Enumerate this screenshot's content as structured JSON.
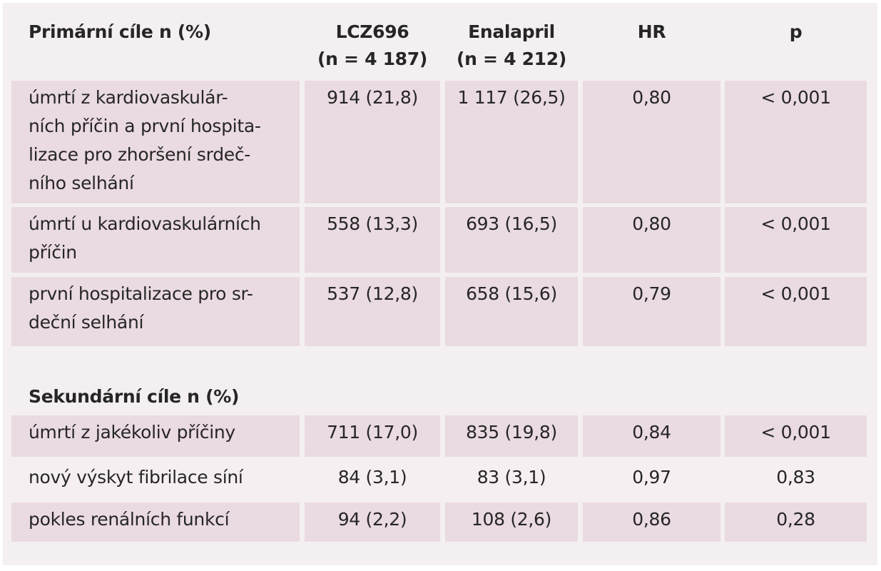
{
  "header": {
    "label": "Primární cíle n (%)",
    "columns": [
      [
        "LCZ696",
        "(n = 4 187)"
      ],
      [
        "Enalapril",
        "(n = 4 212)"
      ],
      [
        "HR"
      ],
      [
        "p"
      ]
    ]
  },
  "primary_rows": [
    {
      "label": [
        "úmrtí z kardiovaskulár-",
        "ních příčin a první hospita-",
        "lizace pro zhoršení srdeč-",
        "ního selhání"
      ],
      "cells": [
        "914 (21,8)",
        "1 117 (26,5)",
        "0,80",
        "< 0,001"
      ]
    },
    {
      "label": [
        "úmrtí u kardiovaskulárních",
        "příčin"
      ],
      "cells": [
        "558 (13,3)",
        "693 (16,5)",
        "0,80",
        "< 0,001"
      ]
    },
    {
      "label": [
        "první hospitalizace pro sr-",
        "deční selhání"
      ],
      "cells": [
        "537 (12,8)",
        "658 (15,6)",
        "0,79",
        "< 0,001"
      ]
    }
  ],
  "secondary_title": "Sekundární cíle n (%)",
  "secondary_rows": [
    {
      "label": [
        "úmrtí z jakékoliv příčiny"
      ],
      "cells": [
        "711 (17,0)",
        "835 (19,8)",
        "0,84",
        "< 0,001"
      ]
    },
    {
      "label": [
        "nový výskyt fibrilace síní"
      ],
      "cells": [
        "84 (3,1)",
        "83 (3,1)",
        "0,97",
        "0,83"
      ]
    },
    {
      "label": [
        "pokles renálních funkcí"
      ],
      "cells": [
        "94 (2,2)",
        "108 (2,6)",
        "0,86",
        "0,28"
      ]
    }
  ]
}
